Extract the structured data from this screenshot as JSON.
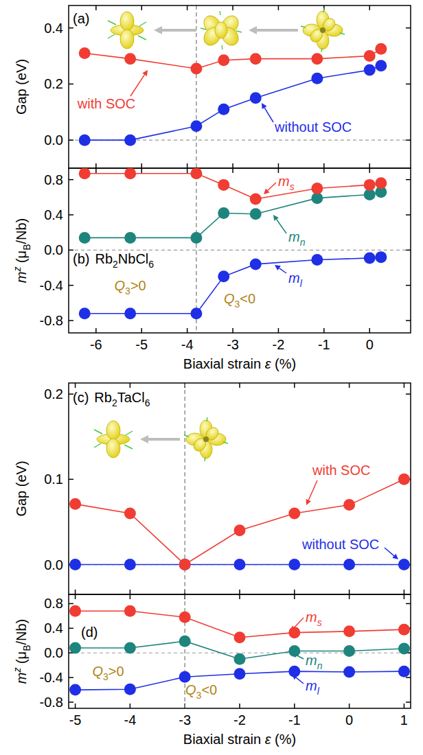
{
  "chart_data": [
    {
      "type": "line",
      "label": "(a)",
      "x": [
        -6.25,
        -5.25,
        -3.8,
        -3.2,
        -2.5,
        -1.15,
        0,
        0.25
      ],
      "series": [
        {
          "name": "with SOC",
          "color": "#f03c32",
          "marker": "circle",
          "values": [
            0.31,
            0.29,
            0.255,
            0.285,
            0.29,
            0.29,
            0.3,
            0.325
          ]
        },
        {
          "name": "without SOC",
          "color": "#1f2fe6",
          "marker": "circle",
          "values": [
            0,
            0,
            0.05,
            0.11,
            0.15,
            0.22,
            0.25,
            0.265
          ]
        }
      ],
      "xlim": [
        -6.6,
        0.9
      ],
      "xticks": [
        -6,
        -5,
        -4,
        -3,
        -2,
        -1,
        0
      ],
      "ylim": [
        -0.1,
        0.48
      ],
      "yticks": [
        {
          "value": 0,
          "label": "0.0"
        },
        0.2,
        0.4
      ],
      "y_label": "Gap (eV)",
      "tick_labels": "y",
      "vline": -3.8
    },
    {
      "type": "line",
      "label": "(b)",
      "title": "Rb2NbCl6",
      "x": [
        -6.25,
        -5.25,
        -3.8,
        -3.2,
        -2.5,
        -1.15,
        0,
        0.25
      ],
      "series": [
        {
          "name": "ms",
          "color": "#f03c32",
          "marker": "circle",
          "values": [
            0.87,
            0.87,
            0.87,
            0.74,
            0.58,
            0.7,
            0.74,
            0.76
          ]
        },
        {
          "name": "mn",
          "color": "#1d857d",
          "marker": "circle",
          "values": [
            0.14,
            0.14,
            0.14,
            0.42,
            0.41,
            0.59,
            0.63,
            0.66
          ]
        },
        {
          "name": "ml",
          "color": "#1f2fe6",
          "marker": "circle",
          "values": [
            -0.72,
            -0.72,
            -0.72,
            -0.3,
            -0.16,
            -0.11,
            -0.09,
            -0.08
          ]
        }
      ],
      "xlim": [
        -6.6,
        0.9
      ],
      "xticks": [
        -6,
        -5,
        -4,
        -3,
        -2,
        -1,
        0
      ],
      "ylim": [
        -0.94,
        0.93
      ],
      "yticks": [
        -0.8,
        -0.4,
        {
          "value": 0,
          "label": "0.0"
        },
        0.4,
        0.8
      ],
      "y_label": "mz (μB/Nb)",
      "x_label": "Biaxial strain ε (%)",
      "vline": -3.8,
      "annotations": [
        {
          "text": "Q3>0",
          "x": -5.25,
          "y": -0.4
        },
        {
          "text": "Q3<0",
          "x": -2.85,
          "y": -0.55
        }
      ]
    },
    {
      "type": "line",
      "label": "(c)",
      "title": "Rb2TaCl6",
      "x": [
        -5,
        -4,
        -3,
        -2,
        -1,
        0,
        1
      ],
      "series": [
        {
          "name": "with SOC",
          "color": "#f03c32",
          "marker": "circle",
          "values": [
            0.071,
            0.06,
            0,
            0.04,
            0.06,
            0.07,
            0.1
          ]
        },
        {
          "name": "without SOC",
          "color": "#1f2fe6",
          "marker": "circle",
          "values": [
            0,
            0,
            0,
            0,
            0,
            0,
            0
          ]
        }
      ],
      "xlim": [
        -5.12,
        1.12
      ],
      "xticks": [
        -5,
        -4,
        -3,
        -2,
        -1,
        0,
        1
      ],
      "ylim": [
        -0.035,
        0.213
      ],
      "yticks": [
        {
          "value": 0,
          "label": "0.0"
        },
        0.1,
        0.2
      ],
      "y_label": "Gap (eV)",
      "tick_labels": "y",
      "vline": -3
    },
    {
      "type": "line",
      "label": "(d)",
      "x": [
        -5,
        -4,
        -3,
        -2,
        -1,
        0,
        1
      ],
      "series": [
        {
          "name": "ms",
          "color": "#f03c32",
          "marker": "circle",
          "values": [
            0.68,
            0.68,
            0.58,
            0.25,
            0.33,
            0.35,
            0.38
          ]
        },
        {
          "name": "mn",
          "color": "#1d857d",
          "marker": "circle",
          "values": [
            0.08,
            0.08,
            0.19,
            -0.1,
            0.03,
            0.03,
            0.07
          ]
        },
        {
          "name": "ml",
          "color": "#1f2fe6",
          "marker": "circle",
          "values": [
            -0.6,
            -0.59,
            -0.39,
            -0.34,
            -0.3,
            -0.31,
            -0.3
          ]
        }
      ],
      "xlim": [
        -5.12,
        1.12
      ],
      "xticks": [
        -5,
        -4,
        -3,
        -2,
        -1,
        0,
        1
      ],
      "ylim": [
        -0.9,
        0.95
      ],
      "yticks": [
        -0.8,
        -0.4,
        {
          "value": 0,
          "label": "0.0"
        },
        0.4,
        0.8
      ],
      "y_label": "mz (μB/Nb)",
      "x_label": "Biaxial strain ε (%)",
      "vline": -3,
      "annotations": [
        {
          "text": "Q3>0",
          "x": -4.4,
          "y": -0.3
        },
        {
          "text": "Q3<0",
          "x": -2.7,
          "y": -0.6
        }
      ]
    }
  ]
}
